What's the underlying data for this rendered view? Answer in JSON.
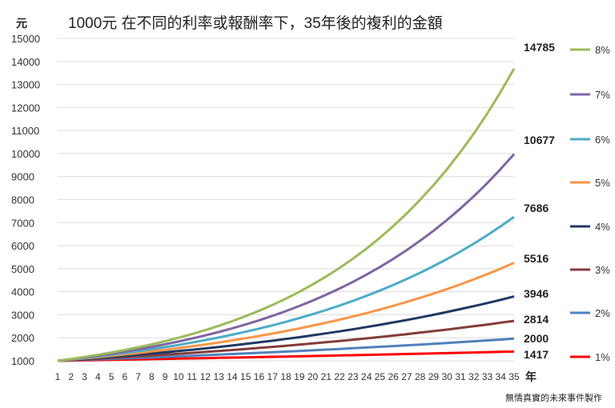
{
  "chart_data": {
    "type": "line",
    "title": "1000元 在不同的利率或報酬率下，35年後的複利的金額",
    "ylabel": "元",
    "xlabel": "年",
    "ylim": [
      1000,
      15000
    ],
    "yticks": [
      1000,
      2000,
      3000,
      4000,
      5000,
      6000,
      7000,
      8000,
      9000,
      10000,
      11000,
      12000,
      13000,
      14000,
      15000
    ],
    "x": [
      1,
      2,
      3,
      4,
      5,
      6,
      7,
      8,
      9,
      10,
      11,
      12,
      13,
      14,
      15,
      16,
      17,
      18,
      19,
      20,
      21,
      22,
      23,
      24,
      25,
      26,
      27,
      28,
      29,
      30,
      31,
      32,
      33,
      34,
      35
    ],
    "grid": "horizontal",
    "legend_position": "right",
    "series": [
      {
        "name": "8%",
        "rate": 0.08,
        "color": "#9bbb59",
        "end_label": "14785"
      },
      {
        "name": "7%",
        "rate": 0.07,
        "color": "#8064a2",
        "end_label": "10677"
      },
      {
        "name": "6%",
        "rate": 0.06,
        "color": "#4bacc6",
        "end_label": "7686"
      },
      {
        "name": "5%",
        "rate": 0.05,
        "color": "#f79646",
        "end_label": "5516"
      },
      {
        "name": "4%",
        "rate": 0.04,
        "color": "#1f3864",
        "end_label": "3946"
      },
      {
        "name": "3%",
        "rate": 0.03,
        "color": "#843c39",
        "end_label": "2814"
      },
      {
        "name": "2%",
        "rate": 0.02,
        "color": "#4f81bd",
        "end_label": "2000"
      },
      {
        "name": "1%",
        "rate": 0.01,
        "color": "#ff0000",
        "end_label": "1417"
      }
    ],
    "credit": "無情真實的未來事件製作"
  }
}
